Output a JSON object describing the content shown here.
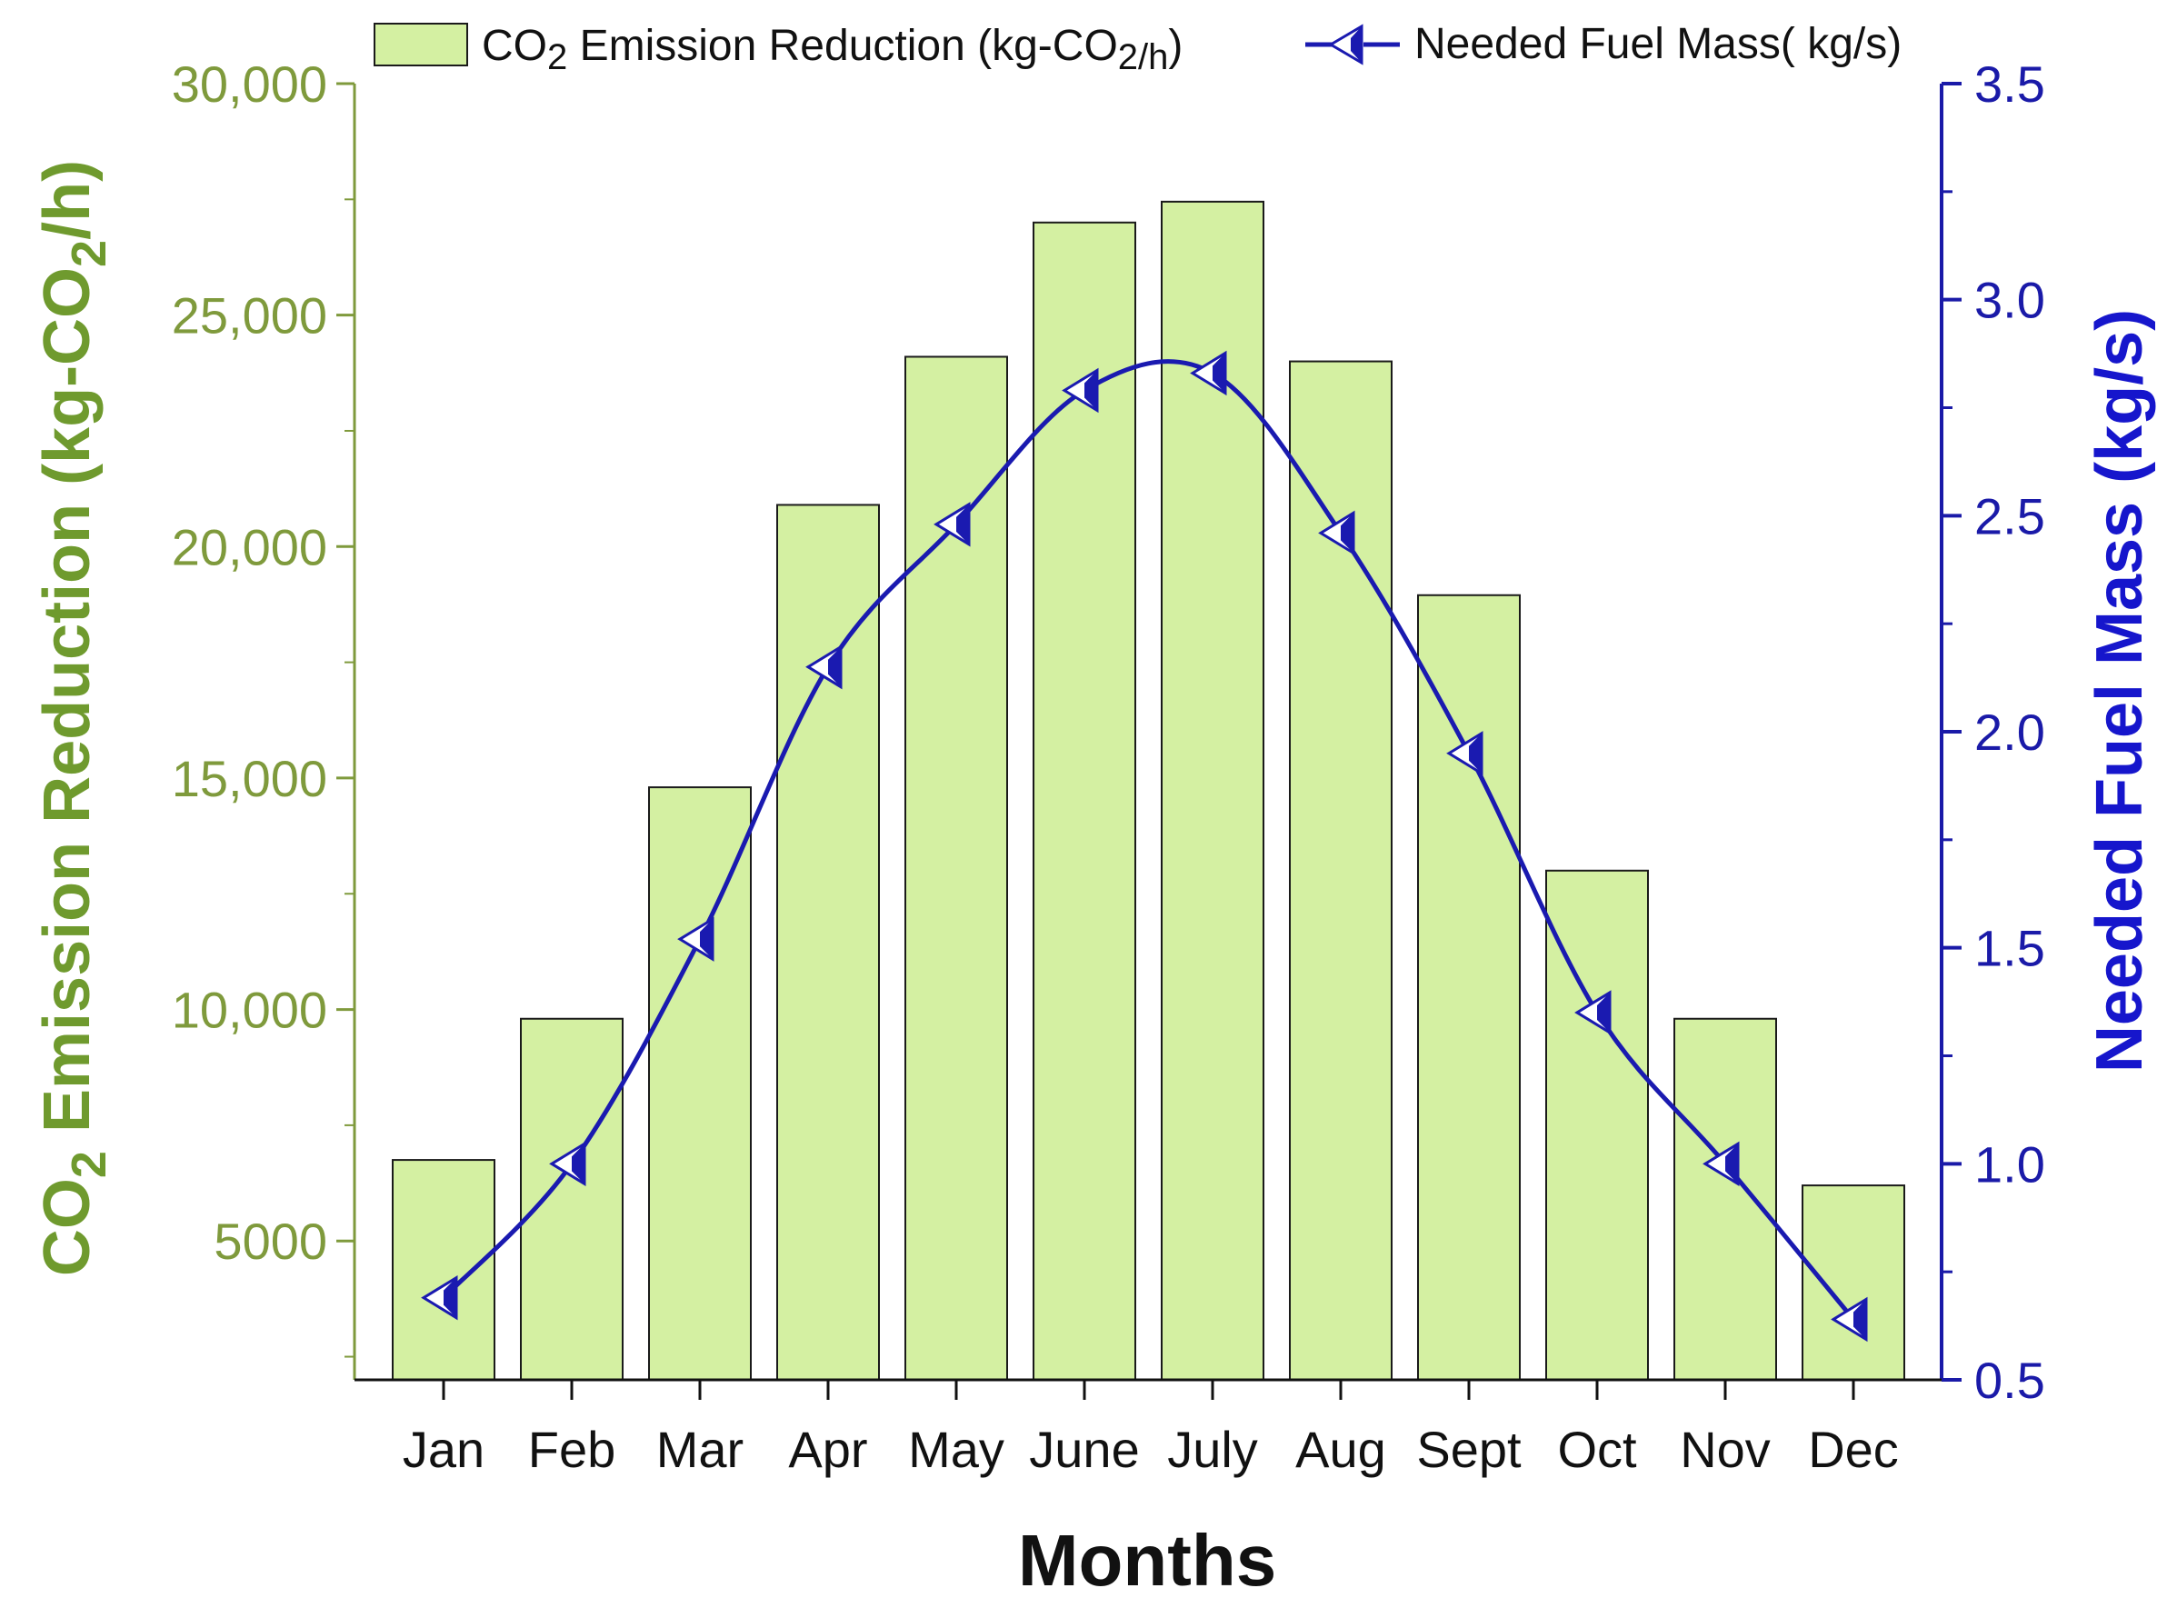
{
  "chart_data": {
    "type": "bar+line",
    "categories": [
      "Jan",
      "Feb",
      "Mar",
      "Apr",
      "May",
      "June",
      "July",
      "Aug",
      "Sept",
      "Oct",
      "Nov",
      "Dec"
    ],
    "series": [
      {
        "name": "CO2 Emission Reduction (kg-CO2/h)",
        "type": "bar",
        "axis": "left",
        "values": [
          6750,
          9800,
          14800,
          20900,
          24100,
          27000,
          27450,
          24000,
          18950,
          13000,
          9800,
          6200
        ]
      },
      {
        "name": "Needed Fuel Mass( kg/s)",
        "type": "line",
        "axis": "right",
        "marker": "left-triangle",
        "values": [
          0.69,
          1.0,
          1.52,
          2.15,
          2.48,
          2.79,
          2.83,
          2.46,
          1.95,
          1.35,
          1.0,
          0.64
        ]
      }
    ],
    "xlabel": "Months",
    "ylabel_left": {
      "prefix": "CO",
      "sub": "2",
      "suffix": " Emission Reduction (kg-CO",
      "sub2": "2",
      "tail": "/h)"
    },
    "ylabel_right": "Needed Fuel Mass (kg/s)",
    "ylim_left": [
      2000,
      30000
    ],
    "yticks_left": [
      5000,
      10000,
      15000,
      20000,
      25000,
      30000
    ],
    "ytick_labels_left": [
      "5000",
      "10,000",
      "15,000",
      "20,000",
      "25,000",
      "30,000"
    ],
    "ylim_right": [
      0.5,
      3.5
    ],
    "yticks_right": [
      0.5,
      1.0,
      1.5,
      2.0,
      2.5,
      3.0,
      3.5
    ],
    "ytick_labels_right": [
      "0.5",
      "1.0",
      "1.5",
      "2.0",
      "2.5",
      "3.0",
      "3.5"
    ],
    "legend": {
      "placement": "top",
      "bar_label": {
        "a": "CO",
        "a_sub": "2",
        "b": " Emission Reduction (kg-CO",
        "b_sub": "2/h",
        "c": ")"
      },
      "line_label": "Needed Fuel Mass( kg/s)"
    },
    "colors": {
      "bar_fill": "#d4f0a2",
      "bar_stroke": "#1a1a1a",
      "line": "#1a1ab0",
      "left_axis": "#7f9a3c",
      "right_axis": "#1a1aa8"
    }
  }
}
